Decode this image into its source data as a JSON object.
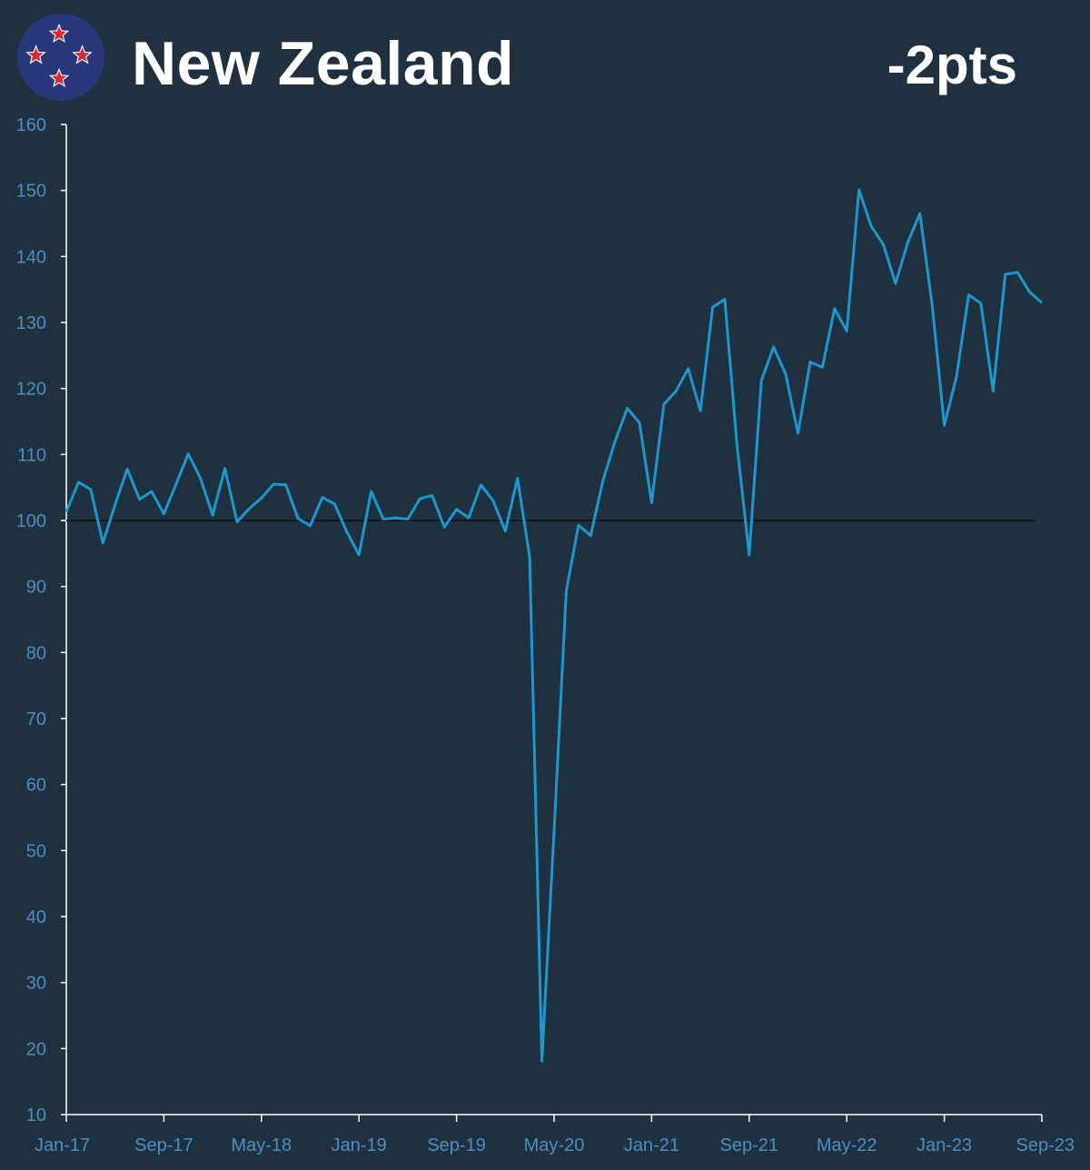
{
  "header": {
    "title": "New Zealand",
    "change": "-2pts"
  },
  "colors": {
    "background": "#1f313f",
    "series": "#1b98d0",
    "axis": "#ffffff",
    "tick_label": "#4d8fc4",
    "baseline": "#0a0f14",
    "flag_blue": "#27397a",
    "star_red": "#d9282f",
    "star_white": "#ffffff"
  },
  "chart_data": {
    "type": "line",
    "title": "New Zealand",
    "xlabel": "",
    "ylabel": "",
    "ylim": [
      10,
      160
    ],
    "yticks": [
      10,
      20,
      30,
      40,
      50,
      60,
      70,
      80,
      90,
      100,
      110,
      120,
      130,
      140,
      150,
      160
    ],
    "x_tick_labels": [
      "Jan-17",
      "Sep-17",
      "May-18",
      "Jan-19",
      "Sep-19",
      "May-20",
      "Jan-21",
      "Sep-21",
      "May-22",
      "Jan-23",
      "Sep-23"
    ],
    "x_start": "Jan-17",
    "x_end": "Sep-23",
    "reference_line": 100,
    "grid": false,
    "series": [
      {
        "name": "",
        "values": [
          101.3,
          105.8,
          104.7,
          96.6,
          102.4,
          107.8,
          103.2,
          104.4,
          101.0,
          105.5,
          110.1,
          106.4,
          100.8,
          107.9,
          99.8,
          101.8,
          103.4,
          105.5,
          105.4,
          100.3,
          99.2,
          103.5,
          102.5,
          98.3,
          94.8,
          104.4,
          100.2,
          100.4,
          100.2,
          103.3,
          103.8,
          99.0,
          101.7,
          100.4,
          105.4,
          103.0,
          98.4,
          106.4,
          94.4,
          18.1,
          53.0,
          89.3,
          99.3,
          97.7,
          106.0,
          112.0,
          117.0,
          114.8,
          102.7,
          117.6,
          119.6,
          123.0,
          116.6,
          132.3,
          133.5,
          111.4,
          94.8,
          121.2,
          126.3,
          122.1,
          113.2,
          124.0,
          123.2,
          132.1,
          128.7,
          150.1,
          144.6,
          141.8,
          135.9,
          142.1,
          146.5,
          132.7,
          114.4,
          121.8,
          134.2,
          132.9,
          119.6,
          137.3,
          137.6,
          134.6,
          133.0
        ]
      }
    ]
  }
}
